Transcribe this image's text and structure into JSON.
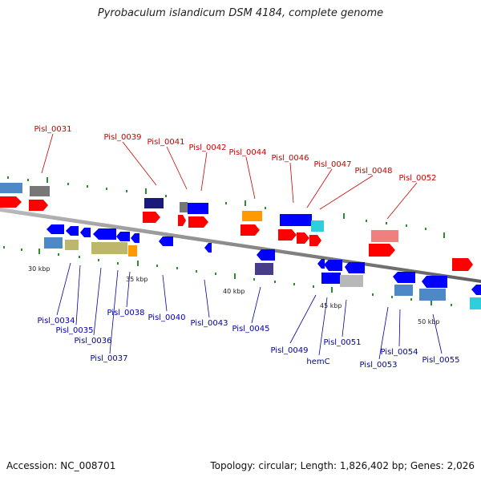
{
  "title": "Pyrobaculum islandicum DSM 4184, complete genome",
  "footer": {
    "accession": "Accession: NC_008701",
    "summary": "Topology: circular; Length: 1,826,402 bp; Genes: 2,026"
  },
  "colors": {
    "backbone": "#808080",
    "forward_cds": "#ff0000",
    "reverse_cds": "#0000ff",
    "top_label": "#cc0000",
    "bottom_label": "#0000aa",
    "tick": "#228822"
  },
  "kbp_marks": [
    "30 kbp",
    "35 kbp",
    "40 kbp",
    "45 kbp",
    "50 kbp"
  ],
  "top_labels": [
    "Pisl_0031",
    "Pisl_0039",
    "Pisl_0041",
    "Pisl_0042",
    "Pisl_0044",
    "Pisl_0046",
    "Pisl_0047",
    "Pisl_0048",
    "Pisl_0052"
  ],
  "bottom_labels": [
    "Pisl_0034",
    "Pisl_0035",
    "Pisl_0036",
    "Pisl_0037",
    "Pisl_0038",
    "Pisl_0040",
    "Pisl_0043",
    "Pisl_0045",
    "Pisl_0049",
    "hemC",
    "Pisl_0051",
    "Pisl_0053",
    "Pisl_0054",
    "Pisl_0055"
  ]
}
